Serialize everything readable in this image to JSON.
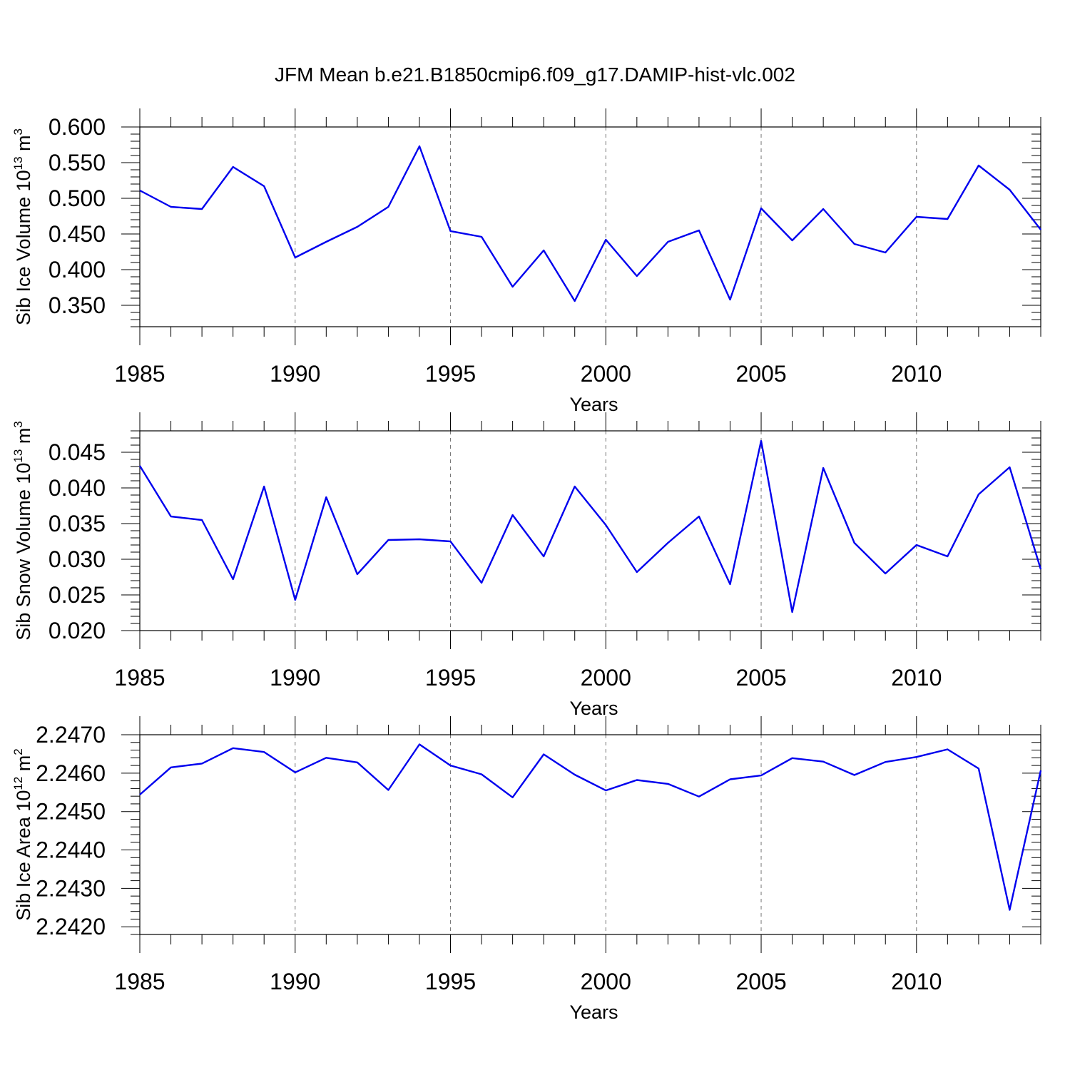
{
  "title": "JFM Mean b.e21.B1850cmip6.f09_g17.DAMIP-hist-vlc.002",
  "line_color": "#0000ee",
  "chart_data": [
    {
      "type": "line",
      "name": "sib-ice-volume",
      "xlabel": "Years",
      "ylabel": "Sib Ice Volume 10",
      "ylabel_exp": "13",
      "ylabel_unit": "m",
      "ylabel_unit_exp": "3",
      "xlim": [
        1985,
        2014
      ],
      "ylim": [
        0.32,
        0.6
      ],
      "xticks": [
        "1985",
        "1990",
        "1995",
        "2000",
        "2005",
        "2010"
      ],
      "yticks": [
        "0.350",
        "0.400",
        "0.450",
        "0.500",
        "0.550",
        "0.600"
      ],
      "grid": "vertical-dashed",
      "x": [
        1985,
        1986,
        1987,
        1988,
        1989,
        1990,
        1991,
        1992,
        1993,
        1994,
        1995,
        1996,
        1997,
        1998,
        1999,
        2000,
        2001,
        2002,
        2003,
        2004,
        2005,
        2006,
        2007,
        2008,
        2009,
        2010,
        2011,
        2012,
        2013,
        2014
      ],
      "y": [
        0.511,
        0.488,
        0.485,
        0.544,
        0.517,
        0.417,
        0.439,
        0.46,
        0.488,
        0.573,
        0.454,
        0.446,
        0.376,
        0.427,
        0.356,
        0.442,
        0.391,
        0.439,
        0.455,
        0.358,
        0.486,
        0.441,
        0.485,
        0.436,
        0.424,
        0.474,
        0.471,
        0.546,
        0.512,
        0.456
      ]
    },
    {
      "type": "line",
      "name": "sib-snow-volume",
      "xlabel": "Years",
      "ylabel": "Sib Snow Volume 10",
      "ylabel_exp": "13",
      "ylabel_unit": "m",
      "ylabel_unit_exp": "3",
      "xlim": [
        1985,
        2014
      ],
      "ylim": [
        0.02,
        0.048
      ],
      "xticks": [
        "1985",
        "1990",
        "1995",
        "2000",
        "2005",
        "2010"
      ],
      "yticks": [
        "0.020",
        "0.025",
        "0.030",
        "0.035",
        "0.040",
        "0.045"
      ],
      "grid": "vertical-dashed",
      "x": [
        1985,
        1986,
        1987,
        1988,
        1989,
        1990,
        1991,
        1992,
        1993,
        1994,
        1995,
        1996,
        1997,
        1998,
        1999,
        2000,
        2001,
        2002,
        2003,
        2004,
        2005,
        2006,
        2007,
        2008,
        2009,
        2010,
        2011,
        2012,
        2013,
        2014
      ],
      "y": [
        0.0431,
        0.036,
        0.0355,
        0.0272,
        0.0402,
        0.0243,
        0.0387,
        0.0279,
        0.0327,
        0.0328,
        0.0325,
        0.0267,
        0.0362,
        0.0304,
        0.0402,
        0.0348,
        0.0282,
        0.0323,
        0.036,
        0.0265,
        0.0466,
        0.0226,
        0.0428,
        0.0323,
        0.028,
        0.032,
        0.0304,
        0.0391,
        0.0429,
        0.0286
      ]
    },
    {
      "type": "line",
      "name": "sib-ice-area",
      "xlabel": "Years",
      "ylabel": "Sib Ice Area 10",
      "ylabel_exp": "12",
      "ylabel_unit": "m",
      "ylabel_unit_exp": "2",
      "xlim": [
        1985,
        2014
      ],
      "ylim": [
        2.2418,
        2.247
      ],
      "xticks": [
        "1985",
        "1990",
        "1995",
        "2000",
        "2005",
        "2010"
      ],
      "yticks": [
        "2.2420",
        "2.2430",
        "2.2440",
        "2.2450",
        "2.2460",
        "2.2470"
      ],
      "grid": "vertical-dashed",
      "x": [
        1985,
        1986,
        1987,
        1988,
        1989,
        1990,
        1991,
        1992,
        1993,
        1994,
        1995,
        1996,
        1997,
        1998,
        1999,
        2000,
        2001,
        2002,
        2003,
        2004,
        2005,
        2006,
        2007,
        2008,
        2009,
        2010,
        2011,
        2012,
        2013,
        2014
      ],
      "y": [
        2.24544,
        2.24615,
        2.24625,
        2.24665,
        2.24655,
        2.24602,
        2.2464,
        2.24628,
        2.24556,
        2.24675,
        2.2462,
        2.24597,
        2.24537,
        2.24649,
        2.24596,
        2.24555,
        2.24582,
        2.24572,
        2.24539,
        2.24584,
        2.24594,
        2.24639,
        2.2463,
        2.24595,
        2.24629,
        2.24642,
        2.24662,
        2.24612,
        2.24244,
        2.24607
      ]
    }
  ]
}
